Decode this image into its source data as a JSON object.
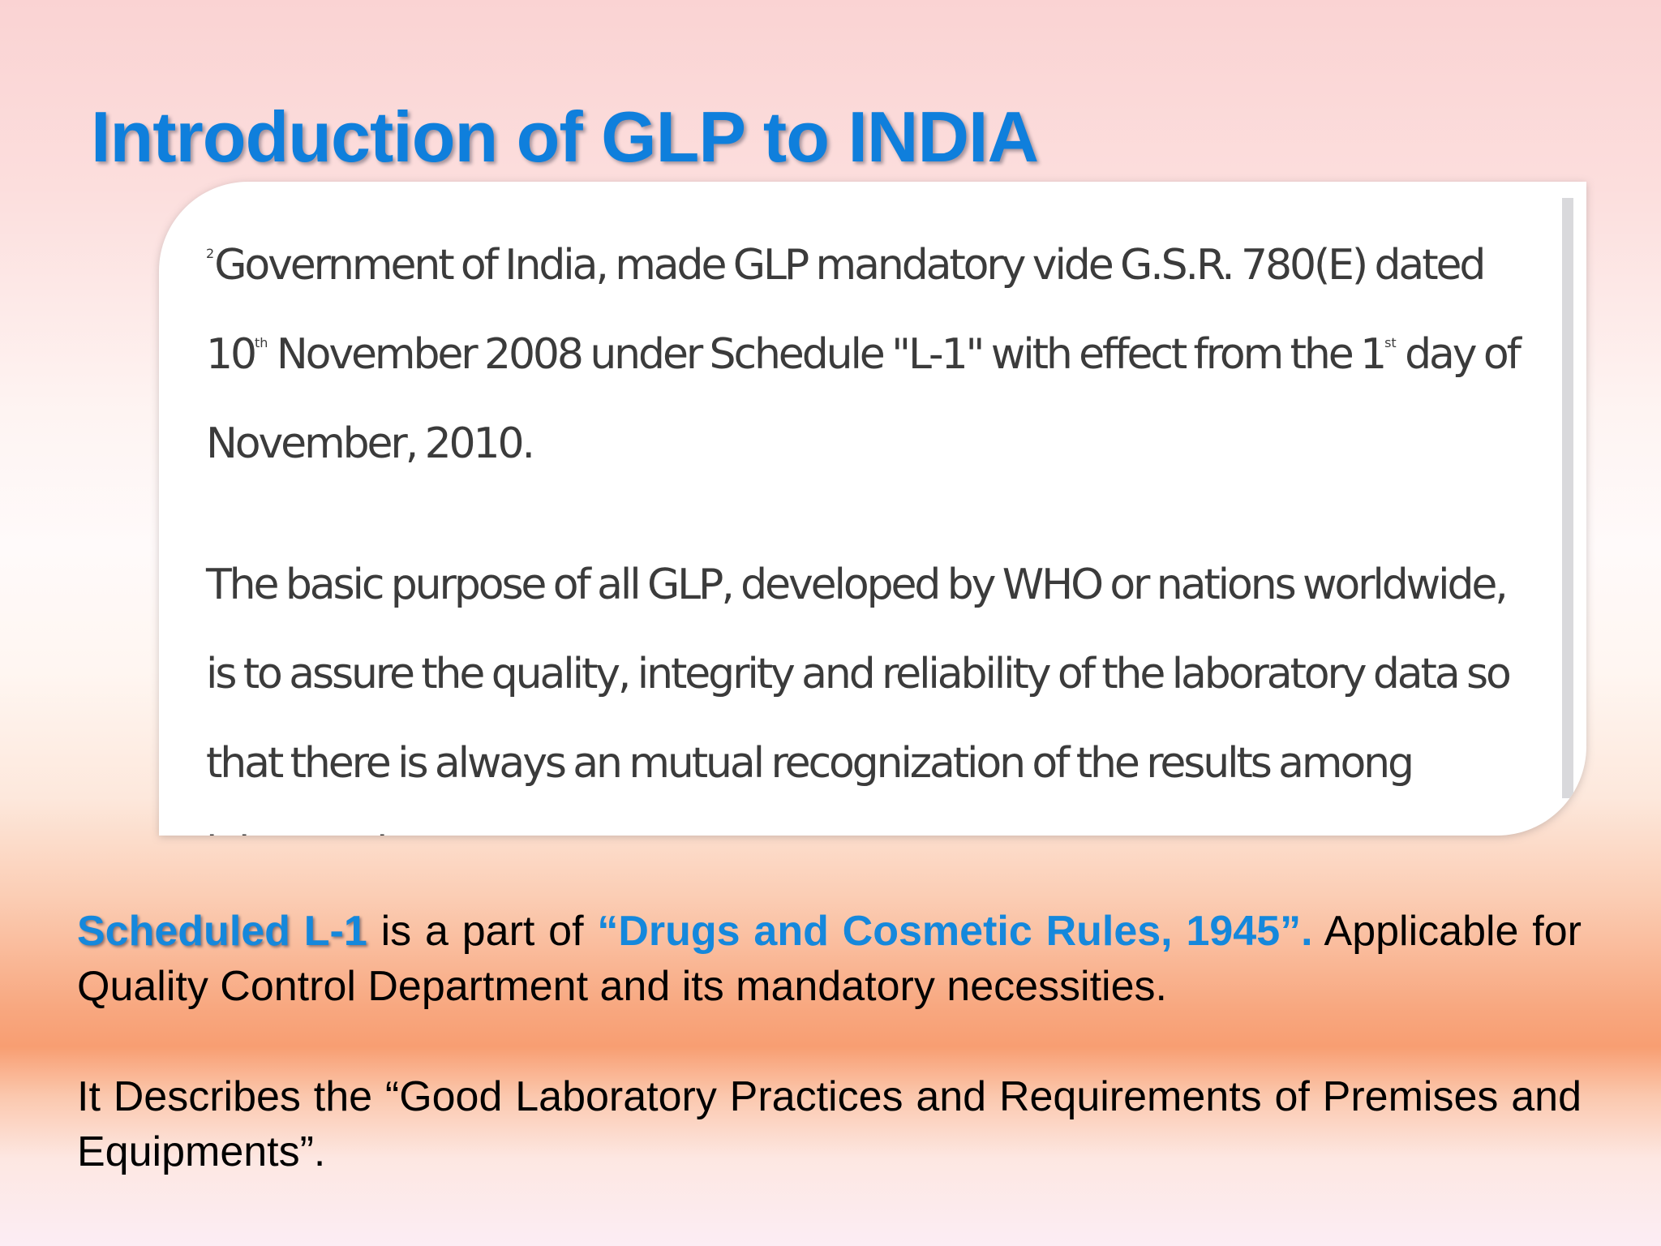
{
  "slide": {
    "title": "Introduction of GLP to INDIA"
  },
  "panel": {
    "para1": {
      "marker": "2",
      "text_a": "Government of India, made GLP mandatory vide G.S.R. 780(E) dated 10",
      "sup_a": "th",
      "text_b": " November 2008 under Schedule \"L-1\" with effect from the 1",
      "sup_b": "st",
      "text_c": " day of November, 2010."
    },
    "para2": "The basic purpose of all GLP, developed by WHO or nations worldwide, is to assure the quality, integrity and reliability of the laboratory data so that there is always an mutual recognization of the results among laboratories."
  },
  "body": {
    "p1": {
      "highlight": "Scheduled L-1",
      "mid": " is a part of ",
      "rules": "“Drugs and Cosmetic Rules, 1945”.",
      "rest": " Applicable for Quality Control Department and its mandatory necessities."
    },
    "p2": "It Describes the “Good Laboratory Practices and Requirements of Premises and Equipments”."
  },
  "colors": {
    "title": "#0f7fdc",
    "highlight": "#1588dc"
  }
}
